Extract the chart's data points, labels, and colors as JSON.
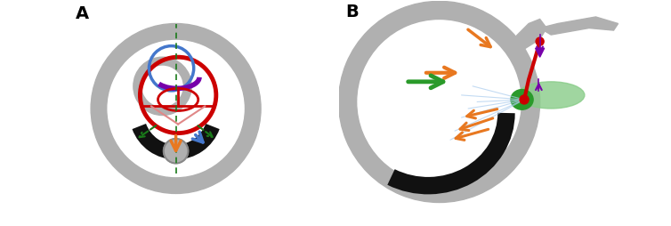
{
  "bg_color": "#ffffff",
  "label_A": "A",
  "label_B": "B",
  "gray_color": "#b0b0b0",
  "black_color": "#111111",
  "red_color": "#cc0000",
  "blue_color": "#4477cc",
  "purple_color": "#7700aa",
  "orange_color": "#e87820",
  "green_color": "#1a7a1a",
  "green_fill": "#2a9a2a",
  "light_green": "#88cc88",
  "light_blue": "#aaccee",
  "pink_color": "#e08888"
}
